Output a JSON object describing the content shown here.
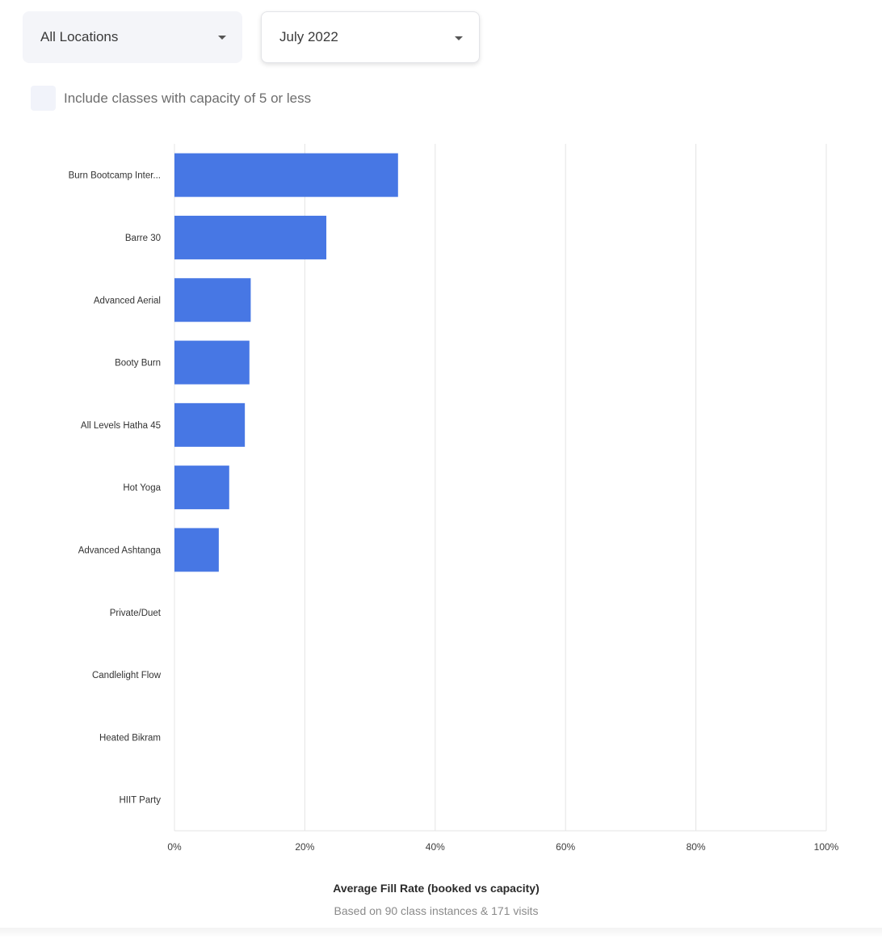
{
  "filters": {
    "location": "All Locations",
    "month": "July 2022",
    "include_small_classes_label": "Include classes with capacity of 5 or less"
  },
  "colors": {
    "bar": "#4777e4",
    "grid": "#e4e4e4"
  },
  "chart_data": {
    "type": "bar",
    "orientation": "horizontal",
    "categories": [
      "Burn Bootcamp Inter...",
      "Barre 30",
      "Advanced Aerial",
      "Booty Burn",
      "All Levels Hatha 45",
      "Hot Yoga",
      "Advanced Ashtanga",
      "Private/Duet",
      "Candlelight Flow",
      "Heated Bikram",
      "HIIT Party"
    ],
    "values": [
      34.3,
      23.3,
      11.7,
      11.5,
      10.8,
      8.4,
      6.8,
      0,
      0,
      0,
      0
    ],
    "xlim": [
      0,
      100
    ],
    "xticks": [
      "0%",
      "20%",
      "40%",
      "60%",
      "80%",
      "100%"
    ],
    "xlabel": "Average Fill Rate (booked vs capacity)",
    "subtitle": "Based on 90 class instances & 171 visits",
    "grid": "vertical"
  }
}
